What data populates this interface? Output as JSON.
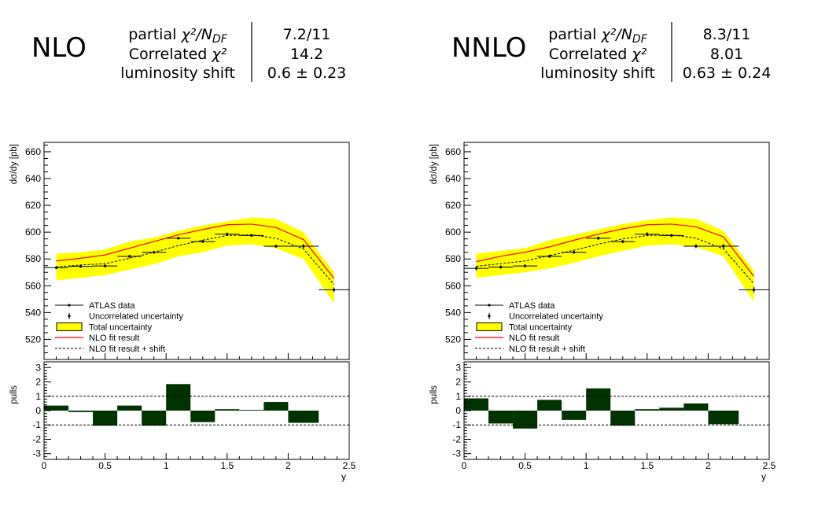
{
  "panels": [
    {
      "header": {
        "order_label": "NLO",
        "rows": [
          {
            "label_prefix": "partial ",
            "label_math": "χ²/N",
            "label_sub": "DF",
            "value": "7.2/11"
          },
          {
            "label_prefix": "Correlated ",
            "label_math": "χ²",
            "label_sub": "",
            "value": "14.2"
          },
          {
            "label_prefix": "luminosity shift",
            "label_math": "",
            "label_sub": "",
            "value": "0.6 ± 0.23"
          }
        ]
      },
      "legend": [
        "ATLAS data",
        "Uncorrelated uncertainty",
        "Total uncertainty",
        "NLO fit result",
        "NLO fit result + shift"
      ]
    },
    {
      "header": {
        "order_label": "NNLO",
        "rows": [
          {
            "label_prefix": "partial ",
            "label_math": "χ²/N",
            "label_sub": "DF",
            "value": "8.3/11"
          },
          {
            "label_prefix": "Correlated ",
            "label_math": "χ²",
            "label_sub": "",
            "value": "8.01"
          },
          {
            "label_prefix": "luminosity shift",
            "label_math": "",
            "label_sub": "",
            "value": "0.63 ± 0.24"
          }
        ]
      },
      "legend": [
        "ATLAS data",
        "Uncorrelated uncertainty",
        "Total uncertainty",
        "NLO fit result",
        "NLO fit result + shift"
      ]
    }
  ],
  "colors": {
    "data": "#000000",
    "band": "#ffff00",
    "fit": "#ff0000",
    "shift": "#000000",
    "pulls": "#003300"
  },
  "chart_data": [
    {
      "type": "line",
      "ylabel": "dσ/dy [pb]",
      "xlabel": "",
      "xlim": [
        0,
        2.5
      ],
      "ylim": [
        505,
        667
      ],
      "yticks": [
        520,
        540,
        560,
        580,
        600,
        620,
        640,
        660
      ],
      "bin_edges": [
        0,
        0.2,
        0.4,
        0.6,
        0.8,
        1.0,
        1.2,
        1.4,
        1.6,
        1.8,
        2.0,
        2.25,
        2.5
      ],
      "data": {
        "x": [
          0.1,
          0.3,
          0.5,
          0.7,
          0.9,
          1.1,
          1.3,
          1.5,
          1.7,
          1.9,
          2.125,
          2.375
        ],
        "y": [
          573.5,
          574.5,
          574.8,
          582.0,
          585.0,
          595.5,
          593.0,
          598.5,
          597.5,
          589.5,
          589.5,
          557.0
        ],
        "err": [
          1.2,
          1.0,
          1.0,
          1.0,
          1.0,
          1.0,
          1.0,
          1.2,
          1.0,
          1.2,
          1.5,
          1.8
        ]
      },
      "fit": {
        "x": [
          0.1,
          0.3,
          0.5,
          0.7,
          0.9,
          1.1,
          1.3,
          1.5,
          1.7,
          1.9,
          2.125,
          2.375
        ],
        "y": [
          578.5,
          580.5,
          583.0,
          588.0,
          593.0,
          598.0,
          602.0,
          605.5,
          606.0,
          603.5,
          594.5,
          565.5
        ]
      },
      "band": {
        "x": [
          0.1,
          0.3,
          0.5,
          0.7,
          0.9,
          1.1,
          1.3,
          1.5,
          1.7,
          1.9,
          2.125,
          2.375
        ],
        "low": [
          564,
          566,
          568,
          572,
          576,
          582,
          585,
          590,
          591,
          588,
          580,
          547
        ],
        "high": [
          584,
          585,
          587,
          593,
          596,
          601,
          605,
          608,
          611,
          610,
          600,
          570
        ]
      },
      "shift": {
        "x": [
          0.1,
          0.3,
          0.5,
          0.7,
          0.9,
          1.1,
          1.3,
          1.5,
          1.7,
          1.9,
          2.125,
          2.375
        ],
        "y": [
          574.0,
          575.5,
          576.5,
          580.5,
          585.0,
          590.0,
          594.0,
          597.5,
          598.0,
          595.5,
          587.5,
          561.0
        ]
      }
    },
    {
      "type": "bar",
      "ylabel": "pulls",
      "xlabel": "y",
      "xlim": [
        0,
        2.5
      ],
      "ylim": [
        -3.4,
        3.4
      ],
      "yticks": [
        -3,
        -2,
        -1,
        0,
        1,
        2,
        3
      ],
      "xticks": [
        0,
        0.5,
        1,
        1.5,
        2,
        2.5
      ],
      "xtick_labels": [
        "0",
        "0.5",
        "1",
        "1.5",
        "2",
        "2.5"
      ],
      "bin_edges": [
        0,
        0.2,
        0.4,
        0.6,
        0.8,
        1.0,
        1.2,
        1.4,
        1.6,
        1.8,
        2.0,
        2.25,
        2.5
      ],
      "values": [
        0.35,
        -0.1,
        -1.05,
        0.35,
        -1.05,
        1.85,
        -0.8,
        0.1,
        0.05,
        0.6,
        -0.85,
        0.0
      ],
      "reference_lines": [
        1,
        -1
      ]
    },
    {
      "type": "line",
      "ylabel": "dσ/dy [pb]",
      "xlabel": "",
      "xlim": [
        0,
        2.5
      ],
      "ylim": [
        505,
        667
      ],
      "yticks": [
        520,
        540,
        560,
        580,
        600,
        620,
        640,
        660
      ],
      "bin_edges": [
        0,
        0.2,
        0.4,
        0.6,
        0.8,
        1.0,
        1.2,
        1.4,
        1.6,
        1.8,
        2.0,
        2.25,
        2.5
      ],
      "data": {
        "x": [
          0.1,
          0.3,
          0.5,
          0.7,
          0.9,
          1.1,
          1.3,
          1.5,
          1.7,
          1.9,
          2.125,
          2.375
        ],
        "y": [
          573.0,
          574.0,
          574.8,
          582.0,
          585.0,
          595.5,
          593.0,
          598.5,
          597.5,
          589.5,
          589.5,
          557.0
        ],
        "err": [
          1.5,
          1.2,
          1.2,
          1.2,
          1.2,
          1.2,
          1.2,
          1.5,
          1.2,
          1.5,
          1.8,
          2.2
        ]
      },
      "fit": {
        "x": [
          0.1,
          0.3,
          0.5,
          0.7,
          0.9,
          1.1,
          1.3,
          1.5,
          1.7,
          1.9,
          2.125,
          2.375
        ],
        "y": [
          578.0,
          582.0,
          585.0,
          589.0,
          594.0,
          598.5,
          602.5,
          605.5,
          606.0,
          604.0,
          596.5,
          567.0
        ]
      },
      "band": {
        "x": [
          0.1,
          0.3,
          0.5,
          0.7,
          0.9,
          1.1,
          1.3,
          1.5,
          1.7,
          1.9,
          2.125,
          2.375
        ],
        "low": [
          566,
          568,
          570,
          573,
          577,
          582,
          586,
          590,
          591,
          589,
          582,
          548
        ],
        "high": [
          584,
          586,
          588,
          594,
          598,
          602,
          606,
          609,
          611,
          610,
          601,
          571
        ]
      },
      "shift": {
        "x": [
          0.1,
          0.3,
          0.5,
          0.7,
          0.9,
          1.1,
          1.3,
          1.5,
          1.7,
          1.9,
          2.125,
          2.375
        ],
        "y": [
          574.5,
          576.5,
          578.5,
          582.5,
          586.5,
          591.0,
          595.0,
          597.5,
          598.0,
          595.5,
          587.5,
          561.5
        ]
      }
    },
    {
      "type": "bar",
      "ylabel": "pulls",
      "xlabel": "y",
      "xlim": [
        0,
        2.5
      ],
      "ylim": [
        -3.4,
        3.4
      ],
      "yticks": [
        -3,
        -2,
        -1,
        0,
        1,
        2,
        3
      ],
      "xticks": [
        0,
        0.5,
        1,
        1.5,
        2,
        2.5
      ],
      "xtick_labels": [
        "0",
        "0.5",
        "1",
        "1.5",
        "2",
        "2.5"
      ],
      "bin_edges": [
        0,
        0.2,
        0.4,
        0.6,
        0.8,
        1.0,
        1.2,
        1.4,
        1.6,
        1.8,
        2.0,
        2.25,
        2.5
      ],
      "values": [
        0.85,
        -0.9,
        -1.25,
        0.75,
        -0.65,
        1.55,
        -1.05,
        0.1,
        0.2,
        0.5,
        -0.95,
        0.0
      ],
      "reference_lines": [
        1,
        -1
      ]
    }
  ]
}
